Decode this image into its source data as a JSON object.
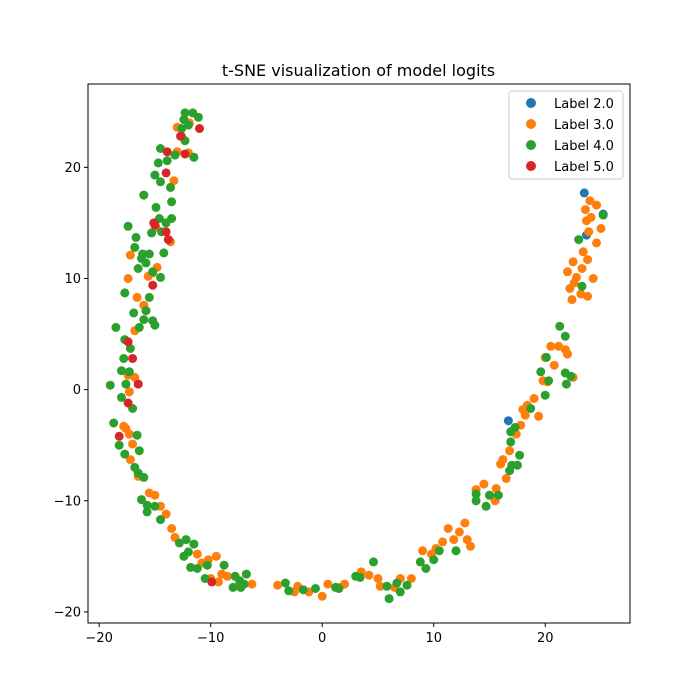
{
  "chart_data": {
    "type": "scatter",
    "title": "t-SNE visualization of model logits",
    "xlabel": "",
    "ylabel": "",
    "xlim": [
      -21,
      27.6
    ],
    "ylim": [
      -21.0,
      27.5
    ],
    "xticks": [
      -20,
      -10,
      0,
      10,
      20
    ],
    "yticks": [
      -20,
      -10,
      0,
      10,
      20
    ],
    "grid": false,
    "legend_position": "top-right",
    "series": [
      {
        "name": "Label 2.0",
        "color": "#1f77b4",
        "points": [
          [
            23.5,
            17.7
          ],
          [
            25.2,
            15.8
          ],
          [
            23.7,
            13.9
          ],
          [
            16.7,
            -2.8
          ]
        ]
      },
      {
        "name": "Label 3.0",
        "color": "#ff7f0e",
        "points": [
          [
            24.0,
            17.0
          ],
          [
            24.6,
            16.6
          ],
          [
            23.6,
            16.2
          ],
          [
            24.1,
            15.5
          ],
          [
            23.7,
            15.2
          ],
          [
            25.0,
            14.5
          ],
          [
            23.9,
            14.2
          ],
          [
            24.6,
            13.2
          ],
          [
            23.4,
            12.4
          ],
          [
            23.8,
            11.7
          ],
          [
            22.5,
            11.5
          ],
          [
            23.3,
            10.9
          ],
          [
            22.0,
            10.6
          ],
          [
            22.8,
            10.1
          ],
          [
            24.3,
            10.0
          ],
          [
            22.6,
            9.6
          ],
          [
            22.2,
            9.1
          ],
          [
            23.2,
            8.6
          ],
          [
            23.8,
            8.4
          ],
          [
            22.4,
            8.1
          ],
          [
            -17.4,
            10.0
          ],
          [
            -17.2,
            12.1
          ],
          [
            -16.6,
            8.3
          ],
          [
            -16.0,
            7.6
          ],
          [
            -16.8,
            5.3
          ],
          [
            -15.2,
            10.5
          ],
          [
            -14.8,
            11.0
          ],
          [
            -14.9,
            14.6
          ],
          [
            -13.6,
            13.3
          ],
          [
            -15.6,
            10.2
          ],
          [
            -13.3,
            18.8
          ],
          [
            -13.0,
            21.4
          ],
          [
            -12.6,
            22.8
          ],
          [
            -13.0,
            23.6
          ],
          [
            -12.0,
            21.3
          ],
          [
            -11.9,
            24.0
          ],
          [
            -17.4,
            1.3
          ],
          [
            -16.8,
            1.1
          ],
          [
            -16.5,
            0.5
          ],
          [
            -17.3,
            -0.2
          ],
          [
            -17.6,
            -3.5
          ],
          [
            -17.3,
            -4.0
          ],
          [
            -17.8,
            -3.3
          ],
          [
            -17.0,
            -4.9
          ],
          [
            -17.2,
            -6.3
          ],
          [
            -16.5,
            -7.8
          ],
          [
            -15.5,
            -9.3
          ],
          [
            -15.0,
            -9.5
          ],
          [
            -14.5,
            -10.5
          ],
          [
            -14.0,
            -11.2
          ],
          [
            -13.5,
            -12.5
          ],
          [
            -13.2,
            -13.3
          ],
          [
            -11.2,
            -14.8
          ],
          [
            -10.8,
            -15.6
          ],
          [
            -10.2,
            -15.3
          ],
          [
            -9.5,
            -15.0
          ],
          [
            -10.0,
            -17.0
          ],
          [
            -9.3,
            -17.3
          ],
          [
            -9.0,
            -16.6
          ],
          [
            -8.5,
            -16.8
          ],
          [
            -7.5,
            -17.6
          ],
          [
            -6.3,
            -17.5
          ],
          [
            -4.0,
            -17.6
          ],
          [
            -2.5,
            -18.2
          ],
          [
            -2.2,
            -17.7
          ],
          [
            -1.2,
            -18.2
          ],
          [
            0.0,
            -18.6
          ],
          [
            0.5,
            -17.5
          ],
          [
            1.5,
            -17.8
          ],
          [
            2.0,
            -17.5
          ],
          [
            3.5,
            -16.4
          ],
          [
            4.2,
            -16.7
          ],
          [
            5.0,
            -17.0
          ],
          [
            5.2,
            -17.7
          ],
          [
            6.5,
            -17.8
          ],
          [
            7.0,
            -17.0
          ],
          [
            8.0,
            -17.0
          ],
          [
            9.0,
            -14.5
          ],
          [
            9.8,
            -14.8
          ],
          [
            10.2,
            -14.3
          ],
          [
            10.8,
            -13.7
          ],
          [
            11.3,
            -12.5
          ],
          [
            11.8,
            -13.5
          ],
          [
            12.3,
            -12.8
          ],
          [
            12.8,
            -12.0
          ],
          [
            13.0,
            -13.5
          ],
          [
            13.3,
            -14.1
          ],
          [
            13.8,
            -9.0
          ],
          [
            14.5,
            -8.5
          ],
          [
            15.0,
            -9.5
          ],
          [
            15.5,
            -10.0
          ],
          [
            15.6,
            -8.9
          ],
          [
            16.0,
            -6.7
          ],
          [
            16.2,
            -6.3
          ],
          [
            16.5,
            -8.0
          ],
          [
            16.8,
            -5.5
          ],
          [
            17.4,
            -4.0
          ],
          [
            17.8,
            -3.2
          ],
          [
            18.2,
            -2.3
          ],
          [
            18.0,
            -1.8
          ],
          [
            18.4,
            -1.4
          ],
          [
            19.0,
            -0.8
          ],
          [
            19.4,
            -2.4
          ],
          [
            19.8,
            0.8
          ],
          [
            20.2,
            0.7
          ],
          [
            20.8,
            2.2
          ],
          [
            20.5,
            3.9
          ],
          [
            21.2,
            3.9
          ],
          [
            21.8,
            3.6
          ],
          [
            22.0,
            3.2
          ],
          [
            22.5,
            1.1
          ],
          [
            20.0,
            2.9
          ]
        ]
      },
      {
        "name": "Label 4.0",
        "color": "#2ca02c",
        "points": [
          [
            -12.3,
            24.9
          ],
          [
            -11.6,
            24.9
          ],
          [
            -11.1,
            24.5
          ],
          [
            -12.4,
            24.3
          ],
          [
            -12.0,
            23.8
          ],
          [
            -12.6,
            23.5
          ],
          [
            -12.3,
            22.4
          ],
          [
            -13.2,
            21.1
          ],
          [
            -14.5,
            21.7
          ],
          [
            -13.9,
            20.6
          ],
          [
            -11.5,
            20.9
          ],
          [
            -14.7,
            20.4
          ],
          [
            -15.0,
            19.3
          ],
          [
            -14.5,
            18.7
          ],
          [
            -13.6,
            18.2
          ],
          [
            -16.0,
            17.5
          ],
          [
            -13.5,
            16.9
          ],
          [
            -14.9,
            16.4
          ],
          [
            -14.6,
            15.4
          ],
          [
            -13.5,
            15.4
          ],
          [
            -14.0,
            15.0
          ],
          [
            -14.4,
            14.2
          ],
          [
            -15.3,
            14.1
          ],
          [
            -17.4,
            14.7
          ],
          [
            -16.7,
            13.7
          ],
          [
            -16.8,
            12.8
          ],
          [
            -16.1,
            12.2
          ],
          [
            -15.5,
            12.2
          ],
          [
            -14.2,
            12.3
          ],
          [
            -16.2,
            11.8
          ],
          [
            -15.8,
            11.4
          ],
          [
            -16.5,
            10.9
          ],
          [
            -15.2,
            10.6
          ],
          [
            -14.5,
            10.1
          ],
          [
            -15.5,
            8.3
          ],
          [
            -15.8,
            7.1
          ],
          [
            -17.7,
            8.7
          ],
          [
            -16.9,
            6.9
          ],
          [
            -16.0,
            6.3
          ],
          [
            -15.2,
            6.2
          ],
          [
            -15.0,
            5.8
          ],
          [
            -16.4,
            5.6
          ],
          [
            -18.5,
            5.6
          ],
          [
            -17.7,
            4.5
          ],
          [
            -17.2,
            3.7
          ],
          [
            -17.8,
            2.8
          ],
          [
            -18.0,
            1.7
          ],
          [
            -17.3,
            1.6
          ],
          [
            -19.0,
            0.4
          ],
          [
            -17.6,
            0.5
          ],
          [
            -18.0,
            -0.7
          ],
          [
            -17.0,
            -1.7
          ],
          [
            -18.7,
            -3.0
          ],
          [
            -16.6,
            -4.1
          ],
          [
            -18.2,
            -5.0
          ],
          [
            -17.7,
            -5.8
          ],
          [
            -16.4,
            -5.5
          ],
          [
            -16.8,
            -7.0
          ],
          [
            -16.5,
            -7.5
          ],
          [
            -16.0,
            -7.9
          ],
          [
            -16.2,
            -9.9
          ],
          [
            -15.7,
            -10.4
          ],
          [
            -15.0,
            -10.5
          ],
          [
            -15.7,
            -11.0
          ],
          [
            -14.5,
            -11.7
          ],
          [
            -12.8,
            -13.8
          ],
          [
            -12.2,
            -13.5
          ],
          [
            -11.5,
            -13.9
          ],
          [
            -12.0,
            -14.6
          ],
          [
            -12.4,
            -15.0
          ],
          [
            -11.8,
            -16.0
          ],
          [
            -11.2,
            -16.1
          ],
          [
            -10.3,
            -15.8
          ],
          [
            -10.5,
            -17.0
          ],
          [
            -8.8,
            -15.8
          ],
          [
            -7.8,
            -16.8
          ],
          [
            -7.4,
            -17.2
          ],
          [
            -6.8,
            -16.6
          ],
          [
            -7.0,
            -17.5
          ],
          [
            -7.3,
            -17.8
          ],
          [
            -8.0,
            -17.8
          ],
          [
            -3.3,
            -17.4
          ],
          [
            -3.0,
            -18.1
          ],
          [
            -1.7,
            -18.0
          ],
          [
            -0.6,
            -17.9
          ],
          [
            1.2,
            -17.8
          ],
          [
            1.5,
            -17.9
          ],
          [
            3.0,
            -16.8
          ],
          [
            3.4,
            -16.9
          ],
          [
            4.6,
            -15.5
          ],
          [
            5.8,
            -17.7
          ],
          [
            6.0,
            -18.8
          ],
          [
            6.7,
            -17.4
          ],
          [
            7.0,
            -18.2
          ],
          [
            7.6,
            -17.6
          ],
          [
            8.8,
            -15.5
          ],
          [
            9.3,
            -16.1
          ],
          [
            10.0,
            -15.3
          ],
          [
            10.5,
            -14.5
          ],
          [
            12.0,
            -14.5
          ],
          [
            13.8,
            -9.4
          ],
          [
            13.8,
            -10.0
          ],
          [
            14.7,
            -10.5
          ],
          [
            15.0,
            -9.5
          ],
          [
            15.8,
            -9.5
          ],
          [
            16.8,
            -7.3
          ],
          [
            16.9,
            -3.8
          ],
          [
            16.9,
            -4.7
          ],
          [
            17.0,
            -6.8
          ],
          [
            17.5,
            -6.8
          ],
          [
            17.7,
            -5.9
          ],
          [
            17.3,
            -3.4
          ],
          [
            18.7,
            -1.7
          ],
          [
            20.0,
            -0.5
          ],
          [
            20.3,
            0.8
          ],
          [
            19.6,
            1.6
          ],
          [
            20.1,
            2.9
          ],
          [
            21.3,
            5.7
          ],
          [
            21.8,
            4.8
          ],
          [
            21.8,
            1.5
          ],
          [
            21.9,
            0.5
          ],
          [
            22.3,
            1.2
          ],
          [
            23.3,
            9.3
          ],
          [
            25.2,
            15.7
          ],
          [
            23.0,
            13.5
          ]
        ]
      },
      {
        "name": "Label 5.0",
        "color": "#d62728",
        "points": [
          [
            -11.0,
            23.5
          ],
          [
            -12.7,
            22.8
          ],
          [
            -12.3,
            21.2
          ],
          [
            -13.9,
            21.4
          ],
          [
            -14.0,
            19.5
          ],
          [
            -15.1,
            15.0
          ],
          [
            -15.0,
            14.8
          ],
          [
            -14.0,
            14.2
          ],
          [
            -13.8,
            13.5
          ],
          [
            -15.2,
            9.4
          ],
          [
            -17.4,
            4.3
          ],
          [
            -17.0,
            2.8
          ],
          [
            -16.5,
            0.5
          ],
          [
            -17.4,
            -1.2
          ],
          [
            -18.2,
            -4.2
          ],
          [
            -9.9,
            -17.3
          ]
        ]
      }
    ]
  }
}
